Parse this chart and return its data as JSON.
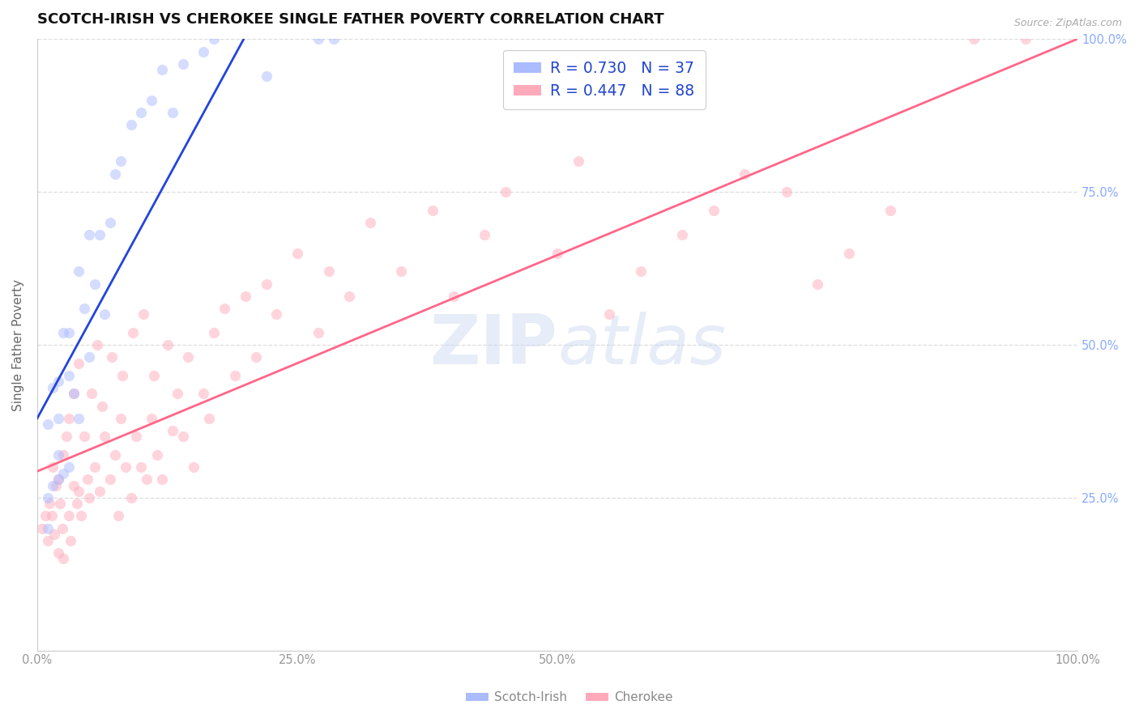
{
  "title": "SCOTCH-IRISH VS CHEROKEE SINGLE FATHER POVERTY CORRELATION CHART",
  "source": "Source: ZipAtlas.com",
  "ylabel": "Single Father Poverty",
  "watermark_text": "ZIPatlas",
  "scotch_irish": {
    "label": "Scotch-Irish",
    "R": 0.73,
    "N": 37,
    "dot_color": "#aabbff",
    "line_color": "#2244dd",
    "x": [
      0.01,
      0.01,
      0.01,
      0.015,
      0.015,
      0.02,
      0.02,
      0.02,
      0.02,
      0.025,
      0.025,
      0.03,
      0.03,
      0.03,
      0.035,
      0.04,
      0.04,
      0.045,
      0.05,
      0.05,
      0.055,
      0.06,
      0.065,
      0.07,
      0.075,
      0.08,
      0.09,
      0.1,
      0.11,
      0.12,
      0.13,
      0.14,
      0.16,
      0.17,
      0.22,
      0.27,
      0.285
    ],
    "y": [
      0.2,
      0.25,
      0.37,
      0.27,
      0.43,
      0.28,
      0.32,
      0.38,
      0.44,
      0.29,
      0.52,
      0.3,
      0.45,
      0.52,
      0.42,
      0.38,
      0.62,
      0.56,
      0.48,
      0.68,
      0.6,
      0.68,
      0.55,
      0.7,
      0.78,
      0.8,
      0.86,
      0.88,
      0.9,
      0.95,
      0.88,
      0.96,
      0.98,
      1.0,
      0.94,
      1.0,
      1.0
    ]
  },
  "cherokee": {
    "label": "Cherokee",
    "R": 0.447,
    "N": 88,
    "dot_color": "#ffaabb",
    "line_color": "#ff6688",
    "x": [
      0.005,
      0.008,
      0.01,
      0.012,
      0.014,
      0.015,
      0.016,
      0.018,
      0.02,
      0.02,
      0.022,
      0.024,
      0.025,
      0.025,
      0.028,
      0.03,
      0.03,
      0.032,
      0.035,
      0.035,
      0.038,
      0.04,
      0.04,
      0.042,
      0.045,
      0.048,
      0.05,
      0.052,
      0.055,
      0.058,
      0.06,
      0.062,
      0.065,
      0.07,
      0.072,
      0.075,
      0.078,
      0.08,
      0.082,
      0.085,
      0.09,
      0.092,
      0.095,
      0.1,
      0.102,
      0.105,
      0.11,
      0.112,
      0.115,
      0.12,
      0.125,
      0.13,
      0.135,
      0.14,
      0.145,
      0.15,
      0.16,
      0.165,
      0.17,
      0.18,
      0.19,
      0.2,
      0.21,
      0.22,
      0.23,
      0.25,
      0.27,
      0.28,
      0.3,
      0.32,
      0.35,
      0.38,
      0.4,
      0.43,
      0.45,
      0.5,
      0.52,
      0.55,
      0.58,
      0.62,
      0.65,
      0.68,
      0.72,
      0.75,
      0.78,
      0.82,
      0.9,
      0.95
    ],
    "y": [
      0.2,
      0.22,
      0.18,
      0.24,
      0.22,
      0.3,
      0.19,
      0.27,
      0.16,
      0.28,
      0.24,
      0.2,
      0.32,
      0.15,
      0.35,
      0.22,
      0.38,
      0.18,
      0.27,
      0.42,
      0.24,
      0.26,
      0.47,
      0.22,
      0.35,
      0.28,
      0.25,
      0.42,
      0.3,
      0.5,
      0.26,
      0.4,
      0.35,
      0.28,
      0.48,
      0.32,
      0.22,
      0.38,
      0.45,
      0.3,
      0.25,
      0.52,
      0.35,
      0.3,
      0.55,
      0.28,
      0.38,
      0.45,
      0.32,
      0.28,
      0.5,
      0.36,
      0.42,
      0.35,
      0.48,
      0.3,
      0.42,
      0.38,
      0.52,
      0.56,
      0.45,
      0.58,
      0.48,
      0.6,
      0.55,
      0.65,
      0.52,
      0.62,
      0.58,
      0.7,
      0.62,
      0.72,
      0.58,
      0.68,
      0.75,
      0.65,
      0.8,
      0.55,
      0.62,
      0.68,
      0.72,
      0.78,
      0.75,
      0.6,
      0.65,
      0.72,
      1.0,
      1.0
    ]
  },
  "xlim": [
    0.0,
    1.0
  ],
  "ylim": [
    0.0,
    1.0
  ],
  "background_color": "#ffffff",
  "grid_color": "#dddddd",
  "title_fontsize": 13,
  "axis_label_fontsize": 11,
  "tick_fontsize": 10.5,
  "marker_size": 90,
  "marker_alpha": 0.5,
  "line_width": 2.0
}
